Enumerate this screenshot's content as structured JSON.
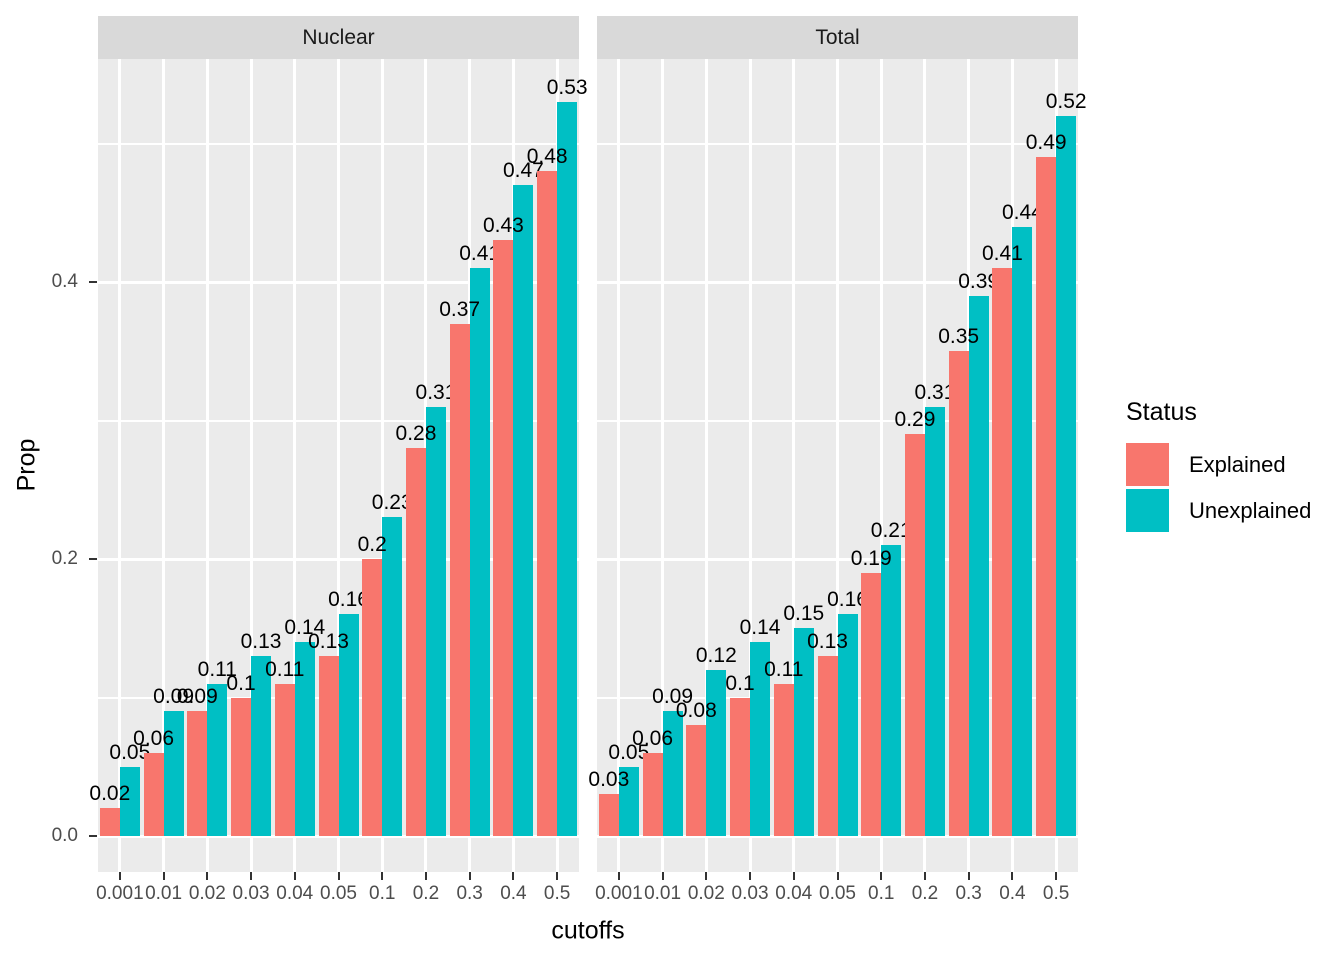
{
  "chart_data": {
    "type": "bar",
    "title": "",
    "xlabel": "cutoffs",
    "ylabel": "Prop",
    "grid": true,
    "legend_position": "right",
    "categories": [
      "0.001",
      "0.01",
      "0.02",
      "0.03",
      "0.04",
      "0.05",
      "0.1",
      "0.2",
      "0.3",
      "0.4",
      "0.5"
    ],
    "facets": [
      {
        "label": "Nuclear",
        "series": [
          {
            "name": "Explained",
            "values": [
              0.02,
              0.06,
              0.09,
              0.1,
              0.11,
              0.13,
              0.2,
              0.28,
              0.37,
              0.43,
              0.48
            ]
          },
          {
            "name": "Unexplained",
            "values": [
              0.05,
              0.09,
              0.11,
              0.13,
              0.14,
              0.16,
              0.23,
              0.31,
              0.41,
              0.47,
              0.53
            ]
          }
        ]
      },
      {
        "label": "Total",
        "series": [
          {
            "name": "Explained",
            "values": [
              0.03,
              0.06,
              0.08,
              0.1,
              0.11,
              0.13,
              0.19,
              0.29,
              0.35,
              0.41,
              0.49
            ]
          },
          {
            "name": "Unexplained",
            "values": [
              0.05,
              0.09,
              0.12,
              0.14,
              0.15,
              0.16,
              0.21,
              0.31,
              0.39,
              0.44,
              0.52
            ]
          }
        ]
      }
    ],
    "y_axis": {
      "ticks": [
        {
          "label": "0.0",
          "value": 0.0
        },
        {
          "label": "0.2",
          "value": 0.2
        },
        {
          "label": "0.4",
          "value": 0.4
        }
      ],
      "minor_gridlines": [
        0.1,
        0.3,
        0.5
      ],
      "range": [
        -0.027,
        0.563
      ]
    },
    "legend": {
      "title": "Status",
      "entries": [
        {
          "label": "Explained",
          "color": "#F8766D"
        },
        {
          "label": "Unexplained",
          "color": "#00BFC4"
        }
      ]
    },
    "colors": {
      "explained": "#F8766D",
      "unexplained": "#00BFC4",
      "panel_bg": "#EBEBEB",
      "strip_bg": "#D9D9D9",
      "gridline": "#FFFFFF",
      "axis_text": "#4D4D4D",
      "tick_mark": "#333333",
      "bar_label_text": "#000000",
      "strip_text": "#1A1A1A"
    }
  }
}
